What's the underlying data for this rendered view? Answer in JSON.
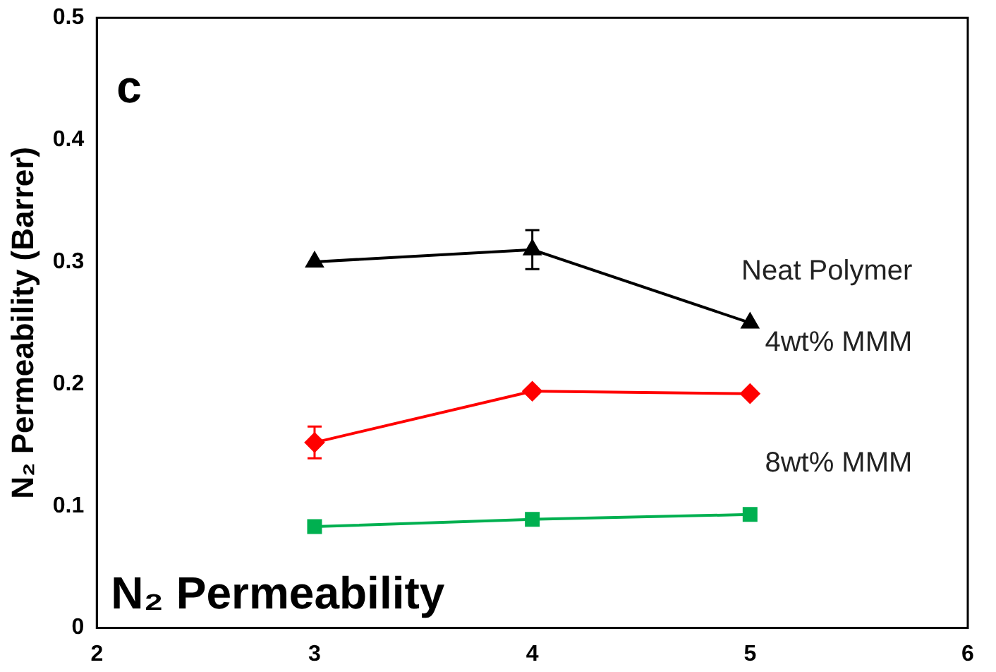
{
  "chart_data": {
    "type": "line",
    "ylabel": "N₂ Permeability (Barrer)",
    "annotations": [
      "c",
      "N₂ Permeability"
    ],
    "xlim": [
      2,
      6
    ],
    "xticks": [
      2,
      3,
      4,
      5,
      6
    ],
    "ylim": [
      0,
      0.5
    ],
    "yticks": [
      0,
      0.1,
      0.2,
      0.3,
      0.4,
      0.5
    ],
    "grid": false,
    "legend": false,
    "line_style": "solid",
    "x": [
      3,
      4,
      5
    ],
    "series": [
      {
        "name": "Neat Polymer",
        "color": "#000000",
        "marker": "triangle",
        "values": [
          0.3,
          0.31,
          0.25
        ],
        "errors": [
          null,
          0.016,
          null
        ]
      },
      {
        "name": "4wt% MMM",
        "color": "#ff0000",
        "marker": "diamond",
        "values": [
          0.152,
          0.194,
          0.192
        ],
        "errors": [
          0.013,
          null,
          null
        ]
      },
      {
        "name": "8wt% MMM",
        "color": "#00b050",
        "marker": "square",
        "values": [
          0.083,
          0.089,
          0.093
        ]
      }
    ]
  }
}
